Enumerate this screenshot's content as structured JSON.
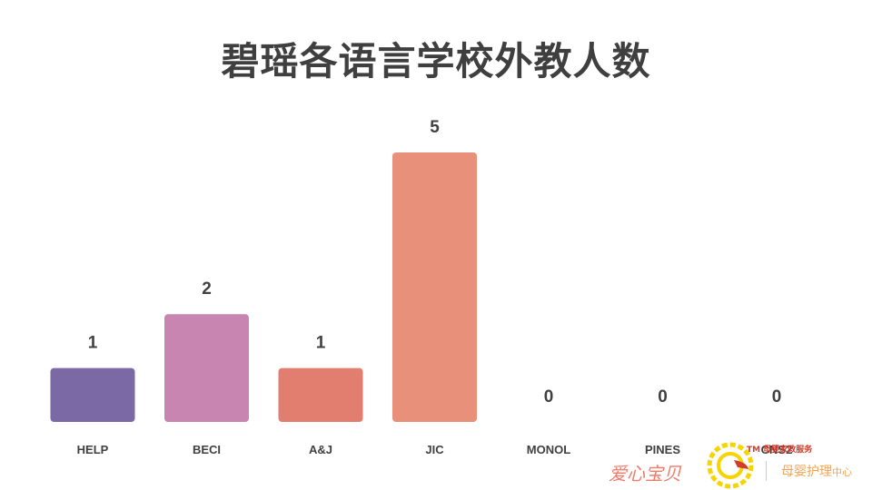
{
  "chart_data": {
    "type": "bar",
    "title": "碧瑶各语言学校外教人数",
    "categories": [
      "HELP",
      "BECI",
      "A&J",
      "JIC",
      "MONOL",
      "PINES",
      "CNS2"
    ],
    "values": [
      1,
      2,
      1,
      5,
      0,
      0,
      0
    ],
    "colors": [
      "#7b69a6",
      "#c985b1",
      "#e27e70",
      "#e8907a",
      "#e8907a",
      "#e8907a",
      "#e8907a"
    ],
    "ylim": [
      0,
      5
    ],
    "grid": false,
    "legend": "none",
    "xlabel": "",
    "ylabel": ""
  },
  "watermark": {
    "brand": "爱心宝贝",
    "tm": "TM 母婴家政服务",
    "sub_main": "母婴护理",
    "sub_small": "中心",
    "logo_icon": "sun-swirl-icon",
    "logo_colors": [
      "#f7d400",
      "#d33c2a"
    ]
  }
}
